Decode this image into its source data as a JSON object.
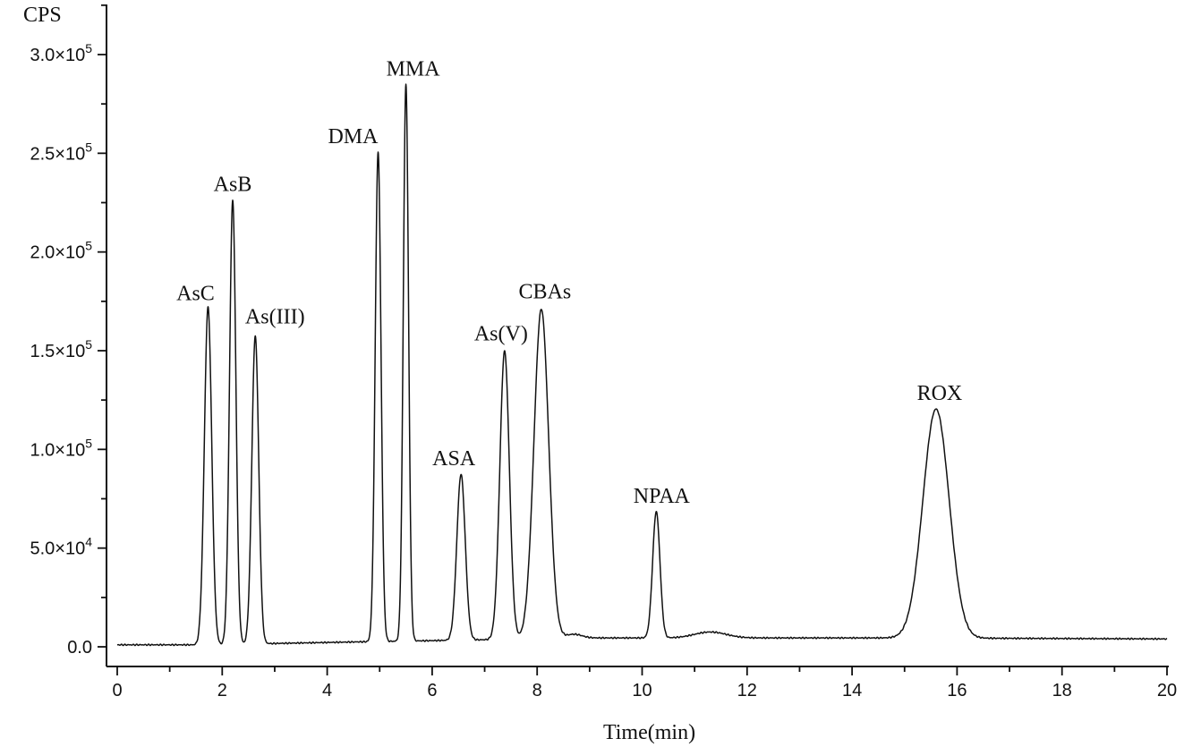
{
  "chart_data": {
    "type": "line",
    "title": "",
    "xlabel": "Time(min)",
    "ylabel": "CPS",
    "xlim": [
      0,
      20
    ],
    "ylim": [
      0,
      320000
    ],
    "x_ticks": [
      0,
      2,
      4,
      6,
      8,
      10,
      12,
      14,
      16,
      18,
      20
    ],
    "x_tick_labels": [
      "0",
      "2",
      "4",
      "6",
      "8",
      "10",
      "12",
      "14",
      "16",
      "18",
      "20"
    ],
    "y_ticks": [
      0,
      50000,
      100000,
      150000,
      200000,
      250000,
      300000
    ],
    "y_tick_labels": [
      {
        "mantissa": "0.0",
        "exponent": ""
      },
      {
        "mantissa": "5.0×10",
        "exponent": "4"
      },
      {
        "mantissa": "1.0×10",
        "exponent": "5"
      },
      {
        "mantissa": "1.5×10",
        "exponent": "5"
      },
      {
        "mantissa": "2.0×10",
        "exponent": "5"
      },
      {
        "mantissa": "2.5×10",
        "exponent": "5"
      },
      {
        "mantissa": "3.0×10",
        "exponent": "5"
      }
    ],
    "grid": false,
    "baseline": [
      {
        "x": 0.0,
        "y": 1000
      },
      {
        "x": 1.6,
        "y": 1000
      },
      {
        "x": 4.6,
        "y": 2500
      },
      {
        "x": 9.0,
        "y": 4500
      },
      {
        "x": 11.0,
        "y": 4500
      },
      {
        "x": 15.0,
        "y": 4500
      },
      {
        "x": 20.0,
        "y": 4000
      }
    ],
    "peaks": [
      {
        "label": "AsC",
        "time": 1.73,
        "height": 171000,
        "width": 0.07
      },
      {
        "label": "AsB",
        "time": 2.2,
        "height": 225000,
        "width": 0.06
      },
      {
        "label": "As(III)",
        "time": 2.63,
        "height": 156000,
        "width": 0.065
      },
      {
        "label": "DMA",
        "time": 4.97,
        "height": 248000,
        "width": 0.055
      },
      {
        "label": "MMA",
        "time": 5.5,
        "height": 282000,
        "width": 0.05
      },
      {
        "label": "ASA",
        "time": 6.55,
        "height": 84000,
        "width": 0.08
      },
      {
        "label": "As(V)",
        "time": 7.38,
        "height": 146000,
        "width": 0.09
      },
      {
        "label": "CBAs",
        "time": 8.08,
        "height": 167000,
        "width": 0.14
      },
      {
        "label": "NPAA",
        "time": 10.27,
        "height": 64000,
        "width": 0.07
      },
      {
        "label": "ROX",
        "time": 15.6,
        "height": 116000,
        "width": 0.25
      }
    ],
    "minor_features": [
      {
        "time": 11.3,
        "height": 3000,
        "width": 0.3
      },
      {
        "time": 8.7,
        "height": 2000,
        "width": 0.15
      }
    ]
  }
}
